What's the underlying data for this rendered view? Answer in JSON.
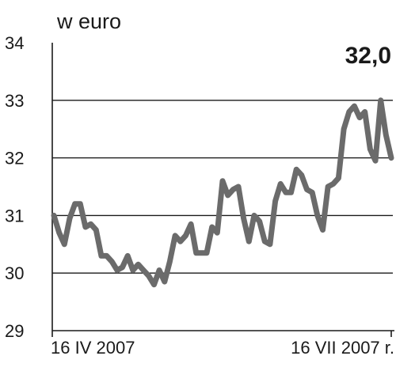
{
  "chart_data": {
    "type": "line",
    "unit_label": "w euro",
    "last_value_label": "32,0",
    "ylim": [
      29,
      34
    ],
    "yticks": [
      "29",
      "30",
      "31",
      "32",
      "33",
      "34"
    ],
    "grid": "horizontal",
    "x_start_label": "16 IV 2007",
    "x_end_label": "16 VII 2007 r.",
    "series": [
      {
        "color": "#6b6b6b",
        "values": [
          31.0,
          30.7,
          30.5,
          30.95,
          31.2,
          31.2,
          30.8,
          30.85,
          30.75,
          30.3,
          30.3,
          30.2,
          30.05,
          30.1,
          30.3,
          30.05,
          30.15,
          30.05,
          29.95,
          29.8,
          30.05,
          29.85,
          30.2,
          30.65,
          30.55,
          30.65,
          30.85,
          30.35,
          30.35,
          30.35,
          30.8,
          30.7,
          31.6,
          31.35,
          31.45,
          31.5,
          30.95,
          30.55,
          31.0,
          30.9,
          30.55,
          30.5,
          31.25,
          31.55,
          31.4,
          31.4,
          31.8,
          31.7,
          31.45,
          31.4,
          31.0,
          30.75,
          31.5,
          31.55,
          31.65,
          32.5,
          32.8,
          32.9,
          32.7,
          32.8,
          32.15,
          31.95,
          33.0,
          32.4,
          32.0
        ]
      }
    ]
  }
}
